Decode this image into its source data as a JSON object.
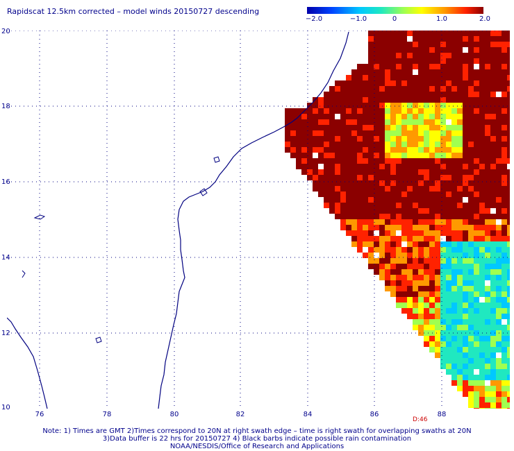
{
  "title": "Rapidscat 12.5km corrected – model winds 20150727 descending",
  "colorbar": {
    "ticks": [
      "−2.0",
      "−1.0",
      "0",
      "1.0",
      "2.0"
    ],
    "colors": [
      "#0000aa",
      "#0044ff",
      "#00c8ff",
      "#20e8c0",
      "#a0ff50",
      "#ffff00",
      "#ff9900",
      "#ff2200",
      "#8b0000"
    ]
  },
  "axes": {
    "lat_labels": [
      "20",
      "18",
      "16",
      "14",
      "12",
      "10"
    ],
    "lon_labels": [
      "76",
      "78",
      "80",
      "82",
      "84",
      "86",
      "88"
    ],
    "lat_range": [
      10,
      20
    ],
    "lon_range": [
      75,
      89.9
    ]
  },
  "pass_time_label": "D:46",
  "notes": {
    "line1": "Note: 1) Times are GMT 2)Times correspond to 20N at right swath edge – time is right swath for overlapping swaths at 20N",
    "line2": "3)Data buffer is 22 hrs for 20150727 4) Black barbs indicate possible rain contamination",
    "line3": "NOAA/NESDIS/Office of Research and Applications"
  },
  "coast_color": "#000080",
  "grid_color": "#000080"
}
